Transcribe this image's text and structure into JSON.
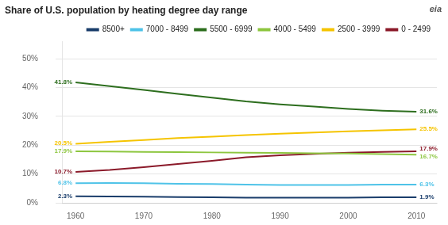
{
  "chart_data": {
    "type": "line",
    "title": "Share of U.S. population by heating degree day range",
    "x": [
      1960,
      1965,
      1970,
      1975,
      1980,
      1985,
      1990,
      1995,
      2000,
      2005,
      2010
    ],
    "series": [
      {
        "name": "8500+",
        "color": "#1a3d6b",
        "values": [
          2.3,
          2.2,
          2.1,
          2.0,
          1.9,
          1.8,
          1.8,
          1.8,
          1.8,
          1.9,
          1.9
        ],
        "value_labels": [
          "2.3%",
          null,
          null,
          null,
          null,
          null,
          null,
          null,
          null,
          null,
          "1.9%"
        ]
      },
      {
        "name": "7000 - 8499",
        "color": "#4fc3e8",
        "values": [
          6.8,
          6.9,
          6.8,
          6.6,
          6.5,
          6.3,
          6.2,
          6.2,
          6.2,
          6.3,
          6.3
        ],
        "value_labels": [
          "6.8%",
          null,
          null,
          null,
          null,
          null,
          null,
          null,
          null,
          null,
          "6.3%"
        ]
      },
      {
        "name": "5500 - 6999",
        "color": "#2d6e1e",
        "values": [
          41.8,
          40.5,
          39.2,
          37.8,
          36.5,
          35.2,
          34.2,
          33.4,
          32.6,
          32.0,
          31.6
        ],
        "value_labels": [
          "41.8%",
          null,
          null,
          null,
          null,
          null,
          null,
          null,
          null,
          null,
          "31.6%"
        ]
      },
      {
        "name": "4000 - 5499",
        "color": "#8dc63f",
        "values": [
          17.9,
          17.8,
          17.7,
          17.6,
          17.5,
          17.4,
          17.3,
          17.2,
          17.1,
          16.9,
          16.7
        ],
        "value_labels": [
          "17.9%",
          null,
          null,
          null,
          null,
          null,
          null,
          null,
          null,
          null,
          "16.7%"
        ]
      },
      {
        "name": "2500 - 3999",
        "color": "#f5c400",
        "values": [
          20.5,
          21.2,
          21.8,
          22.5,
          23.0,
          23.5,
          24.0,
          24.4,
          24.8,
          25.2,
          25.5
        ],
        "value_labels": [
          "20.5%",
          null,
          null,
          null,
          null,
          null,
          null,
          null,
          null,
          null,
          "25.5%"
        ]
      },
      {
        "name": "0 - 2499",
        "color": "#8b1a2a",
        "values": [
          10.7,
          11.4,
          12.4,
          13.5,
          14.6,
          15.8,
          16.5,
          17.0,
          17.4,
          17.7,
          17.9
        ],
        "value_labels": [
          "10.7%",
          null,
          null,
          null,
          null,
          null,
          null,
          null,
          null,
          null,
          "17.9%"
        ]
      }
    ],
    "xlim": [
      1958,
      2013
    ],
    "xticks": [
      1960,
      1970,
      1980,
      1990,
      2000,
      2010
    ],
    "ylim": [
      0,
      56
    ],
    "yticks": [
      {
        "value": 0,
        "label": "0%"
      },
      {
        "value": 10,
        "label": "10%"
      },
      {
        "value": 20,
        "label": "20%"
      },
      {
        "value": 30,
        "label": "30%"
      },
      {
        "value": 40,
        "label": "40%"
      },
      {
        "value": 50,
        "label": "50%"
      }
    ],
    "grid": "y",
    "legend": "upper right",
    "annotations": [
      "eia"
    ]
  }
}
